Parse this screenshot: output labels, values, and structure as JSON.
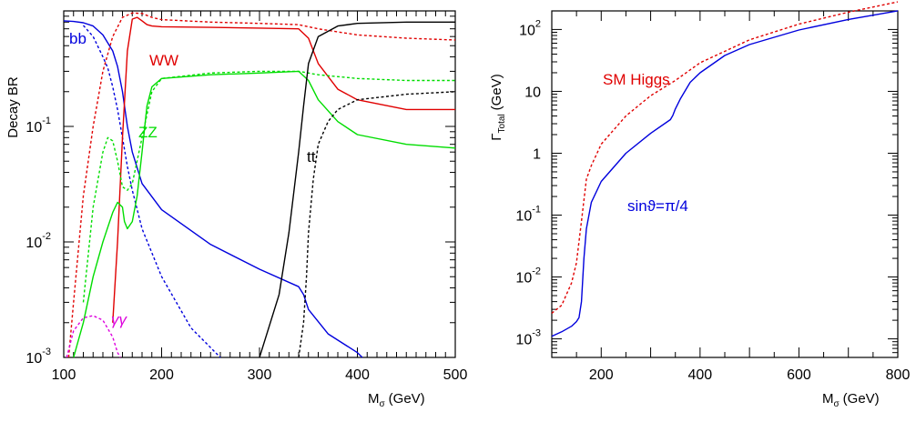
{
  "chart_data": [
    {
      "type": "line",
      "ylabel": "Decay BR",
      "xlabel_main": "M",
      "xlabel_sub": "σ",
      "xlabel_unit": "(GeV)",
      "xlim": [
        100,
        500
      ],
      "ylim_log10": [
        -3,
        0
      ],
      "yscale": "log",
      "x_ticks": [
        "100",
        "200",
        "300",
        "400",
        "500"
      ],
      "y_ticks": [
        {
          "base": "1",
          "exp": ""
        },
        {
          "base": "10",
          "exp": "-1"
        },
        {
          "base": "10",
          "exp": "-2"
        },
        {
          "base": "10",
          "exp": "-3"
        }
      ],
      "series": [
        {
          "label": "bb",
          "color": "#0000dd",
          "dash": false,
          "x": [
            100,
            110,
            120,
            130,
            140,
            150,
            155,
            160,
            165,
            170,
            180,
            200,
            250,
            300,
            340,
            345,
            350,
            370,
            400,
            405
          ],
          "y": [
            0.82,
            0.81,
            0.79,
            0.74,
            0.62,
            0.45,
            0.33,
            0.2,
            0.1,
            0.06,
            0.032,
            0.019,
            0.0095,
            0.0058,
            0.0041,
            0.0035,
            0.0026,
            0.0016,
            0.0011,
            0.001
          ]
        },
        {
          "label": "",
          "color": "#0000dd",
          "dash": true,
          "x": [
            120,
            130,
            140,
            145,
            150,
            155,
            160,
            165,
            170,
            180,
            200,
            230,
            260
          ],
          "y": [
            0.75,
            0.6,
            0.4,
            0.32,
            0.22,
            0.14,
            0.08,
            0.045,
            0.028,
            0.013,
            0.005,
            0.0018,
            0.001
          ]
        },
        {
          "label": "WW",
          "color": "#e00000",
          "dash": false,
          "x": [
            150,
            155,
            160,
            165,
            170,
            175,
            180,
            185,
            190,
            200,
            250,
            300,
            340,
            350,
            360,
            380,
            400,
            450,
            500
          ],
          "y": [
            0.002,
            0.01,
            0.08,
            0.45,
            0.85,
            0.88,
            0.82,
            0.76,
            0.74,
            0.73,
            0.72,
            0.71,
            0.7,
            0.58,
            0.35,
            0.21,
            0.17,
            0.14,
            0.14
          ]
        },
        {
          "label": "",
          "color": "#e00000",
          "dash": true,
          "x": [
            105,
            110,
            120,
            130,
            140,
            150,
            160,
            170,
            180,
            190,
            200,
            250,
            300,
            340,
            360,
            400,
            450,
            500
          ],
          "y": [
            0.001,
            0.003,
            0.025,
            0.1,
            0.3,
            0.6,
            0.88,
            0.96,
            0.95,
            0.88,
            0.84,
            0.8,
            0.78,
            0.76,
            0.7,
            0.62,
            0.58,
            0.56
          ]
        },
        {
          "label": "ZZ",
          "color": "#00dd00",
          "dash": false,
          "x": [
            110,
            120,
            130,
            140,
            150,
            155,
            160,
            162,
            165,
            170,
            175,
            180,
            185,
            190,
            200,
            250,
            300,
            340,
            350,
            360,
            380,
            400,
            450,
            500
          ],
          "y": [
            0.001,
            0.002,
            0.005,
            0.01,
            0.018,
            0.022,
            0.02,
            0.015,
            0.013,
            0.015,
            0.025,
            0.06,
            0.15,
            0.22,
            0.26,
            0.28,
            0.29,
            0.3,
            0.25,
            0.17,
            0.11,
            0.085,
            0.07,
            0.065
          ]
        },
        {
          "label": "",
          "color": "#00dd00",
          "dash": true,
          "x": [
            120,
            130,
            140,
            145,
            150,
            155,
            160,
            165,
            170,
            180,
            190,
            200,
            250,
            300,
            340,
            360,
            400,
            450,
            500
          ],
          "y": [
            0.003,
            0.02,
            0.06,
            0.08,
            0.075,
            0.05,
            0.03,
            0.028,
            0.032,
            0.08,
            0.2,
            0.26,
            0.29,
            0.3,
            0.3,
            0.28,
            0.26,
            0.25,
            0.25
          ]
        },
        {
          "label": "tt",
          "color": "#000000",
          "dash": false,
          "x": [
            300,
            320,
            330,
            340,
            345,
            350,
            360,
            380,
            400,
            450,
            500
          ],
          "y": [
            0.001,
            0.0035,
            0.012,
            0.06,
            0.15,
            0.35,
            0.6,
            0.74,
            0.78,
            0.8,
            0.8
          ]
        },
        {
          "label": "",
          "color": "#000000",
          "dash": true,
          "x": [
            340,
            345,
            348,
            350,
            355,
            360,
            370,
            380,
            400,
            450,
            500
          ],
          "y": [
            0.001,
            0.002,
            0.005,
            0.012,
            0.035,
            0.07,
            0.11,
            0.14,
            0.17,
            0.19,
            0.2
          ]
        },
        {
          "label": "γγ",
          "color": "#dd00dd",
          "dash": true,
          "x": [
            103,
            110,
            120,
            130,
            140,
            150,
            155,
            158
          ],
          "y": [
            0.001,
            0.0017,
            0.0022,
            0.0023,
            0.0021,
            0.0015,
            0.0011,
            0.001
          ]
        }
      ]
    },
    {
      "type": "line",
      "ylabel_main": "Γ",
      "ylabel_sub": "Total",
      "ylabel_unit": "(GeV)",
      "xlabel_main": "M",
      "xlabel_sub": "σ",
      "xlabel_unit": "(GeV)",
      "xlim": [
        100,
        800
      ],
      "ylim_log10": [
        -3.3,
        2.3
      ],
      "yscale": "log",
      "x_ticks": [
        "200",
        "400",
        "600",
        "800"
      ],
      "y_ticks": [
        {
          "base": "10",
          "exp": "2"
        },
        {
          "base": "10",
          "exp": ""
        },
        {
          "base": "1",
          "exp": ""
        },
        {
          "base": "10",
          "exp": "-1"
        },
        {
          "base": "10",
          "exp": "-2"
        },
        {
          "base": "10",
          "exp": "-3"
        }
      ],
      "series": [
        {
          "label": "SM Higgs",
          "color": "#e00000",
          "dash": true,
          "x": [
            100,
            120,
            140,
            150,
            160,
            170,
            180,
            200,
            250,
            300,
            350,
            400,
            500,
            600,
            700,
            800
          ],
          "y": [
            0.0026,
            0.0035,
            0.008,
            0.017,
            0.08,
            0.38,
            0.63,
            1.4,
            4.0,
            8.5,
            15,
            29,
            68,
            122,
            190,
            280
          ]
        },
        {
          "label": "sinϑ=π/4",
          "color": "#0000dd",
          "dash": false,
          "x": [
            100,
            120,
            140,
            150,
            155,
            160,
            165,
            170,
            180,
            200,
            250,
            300,
            340,
            345,
            350,
            360,
            380,
            400,
            450,
            500,
            600,
            700,
            800
          ],
          "y": [
            0.0011,
            0.0013,
            0.0016,
            0.0019,
            0.0022,
            0.004,
            0.02,
            0.06,
            0.16,
            0.35,
            1.0,
            2.1,
            3.5,
            4.1,
            5.2,
            7.5,
            14,
            20,
            38,
            57,
            98,
            145,
            200
          ]
        }
      ]
    }
  ]
}
